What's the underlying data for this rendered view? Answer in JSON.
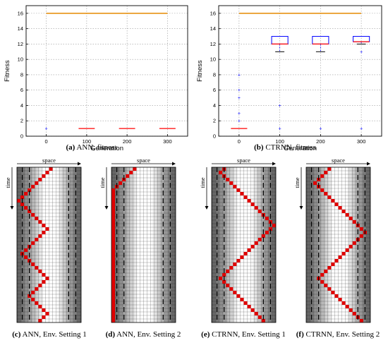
{
  "chart_data": [
    {
      "type": "box",
      "caption_letter": "(a)",
      "caption_text": "ANN, fitness",
      "xlabel": "Generation",
      "ylabel": "Fitness",
      "xticks": [
        "0",
        "100",
        "200",
        "300"
      ],
      "yticks": [
        "0",
        "2",
        "4",
        "6",
        "8",
        "10",
        "12",
        "14",
        "16"
      ],
      "xlim": [
        -50,
        350
      ],
      "ylim": [
        0,
        17
      ],
      "grid": true,
      "reference_line": {
        "y": 16,
        "color": "#e58a00"
      },
      "boxes": [
        {
          "x": 0,
          "q1": 1,
          "median": 1,
          "q3": 1,
          "wlo": 1,
          "whi": 1,
          "outliers": [
            1
          ],
          "box_visible": false
        },
        {
          "x": 100,
          "q1": 1,
          "median": 1,
          "q3": 1,
          "wlo": 1,
          "whi": 1,
          "outliers": [],
          "box_visible": true
        },
        {
          "x": 200,
          "q1": 1,
          "median": 1,
          "q3": 1,
          "wlo": 1,
          "whi": 1,
          "outliers": [],
          "box_visible": true
        },
        {
          "x": 300,
          "q1": 1,
          "median": 1,
          "q3": 1,
          "wlo": 1,
          "whi": 1,
          "outliers": [],
          "box_visible": true
        }
      ]
    },
    {
      "type": "box",
      "caption_letter": "(b)",
      "caption_text": "CTRNN, fitness",
      "xlabel": "Generation",
      "ylabel": "Fitness",
      "xticks": [
        "0",
        "100",
        "200",
        "300"
      ],
      "yticks": [
        "0",
        "2",
        "4",
        "6",
        "8",
        "10",
        "12",
        "14",
        "16"
      ],
      "xlim": [
        -50,
        350
      ],
      "ylim": [
        0,
        17
      ],
      "grid": true,
      "reference_line": {
        "y": 16,
        "color": "#e58a00"
      },
      "boxes": [
        {
          "x": 0,
          "q1": 1,
          "median": 1,
          "q3": 1,
          "wlo": 1,
          "whi": 1,
          "outliers": [
            2,
            3,
            5,
            6,
            8
          ],
          "box_visible": true
        },
        {
          "x": 100,
          "q1": 12,
          "median": 12,
          "q3": 13,
          "wlo": 11,
          "whi": 13,
          "outliers": [
            4,
            1
          ],
          "box_visible": true
        },
        {
          "x": 200,
          "q1": 12,
          "median": 12,
          "q3": 13,
          "wlo": 11,
          "whi": 13,
          "outliers": [
            1
          ],
          "box_visible": true
        },
        {
          "x": 300,
          "q1": 12.3,
          "median": 12.3,
          "q3": 13,
          "wlo": 12,
          "whi": 13,
          "outliers": [
            11,
            1
          ],
          "box_visible": true
        }
      ]
    },
    {
      "type": "heatmap",
      "caption_letter": "(c)",
      "caption_text": "ANN, Env. Setting 1",
      "xlabel": "space",
      "ylabel": "time",
      "columns": 18,
      "rows": 44,
      "trajectory": [
        9,
        8,
        7,
        6,
        5,
        4,
        3,
        2,
        1,
        0,
        1,
        2,
        3,
        4,
        5,
        6,
        7,
        8,
        7,
        6,
        5,
        4,
        3,
        2,
        1,
        2,
        3,
        4,
        5,
        6,
        7,
        8,
        7,
        6,
        5,
        4,
        3,
        4,
        5,
        6,
        7,
        8,
        7,
        6
      ]
    },
    {
      "type": "heatmap",
      "caption_letter": "(d)",
      "caption_text": "ANN, Env. Setting 2",
      "xlabel": "space",
      "ylabel": "time",
      "columns": 18,
      "rows": 44,
      "trajectory": [
        6,
        5,
        4,
        3,
        2,
        1,
        0,
        0,
        0,
        0,
        0,
        0,
        0,
        0,
        0,
        0,
        0,
        0,
        0,
        0,
        0,
        0,
        0,
        0,
        0,
        0,
        0,
        0,
        0,
        0,
        0,
        0,
        0,
        0,
        0,
        0,
        0,
        0,
        0,
        0,
        0,
        0,
        0,
        0
      ]
    },
    {
      "type": "heatmap",
      "caption_letter": "(e)",
      "caption_text": "CTRNN, Env. Setting 1",
      "xlabel": "space",
      "ylabel": "time",
      "columns": 18,
      "rows": 44,
      "trajectory": [
        3,
        2,
        3,
        4,
        5,
        6,
        7,
        8,
        9,
        10,
        11,
        12,
        13,
        14,
        15,
        16,
        17,
        16,
        15,
        14,
        13,
        12,
        11,
        10,
        9,
        8,
        7,
        6,
        5,
        4,
        3,
        2,
        3,
        4,
        5,
        6,
        7,
        8,
        9,
        10,
        11,
        12,
        13,
        14
      ]
    },
    {
      "type": "heatmap",
      "caption_letter": "(f)",
      "caption_text": "CTRNN, Env. Setting 2",
      "xlabel": "space",
      "ylabel": "time",
      "columns": 18,
      "rows": 44,
      "trajectory": [
        6,
        5,
        4,
        3,
        2,
        3,
        4,
        5,
        6,
        7,
        8,
        9,
        10,
        11,
        12,
        13,
        14,
        15,
        16,
        15,
        14,
        13,
        12,
        11,
        10,
        9,
        8,
        7,
        6,
        5,
        4,
        3,
        4,
        5,
        6,
        7,
        8,
        9,
        10,
        11,
        12,
        13,
        14,
        15
      ]
    }
  ]
}
